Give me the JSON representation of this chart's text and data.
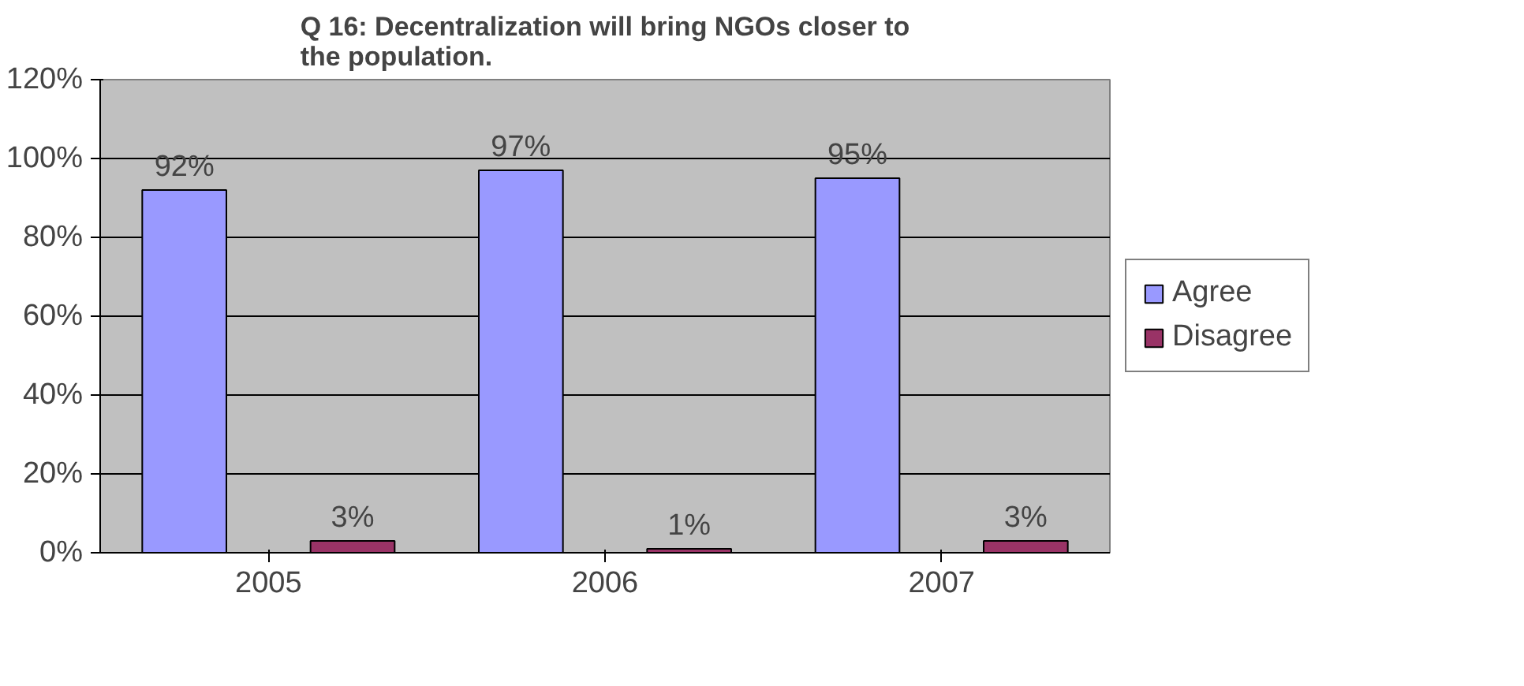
{
  "chart_data": {
    "type": "bar",
    "title": "Q 16: Decentralization will bring NGOs closer to the population.",
    "categories": [
      "2005",
      "2006",
      "2007"
    ],
    "series": [
      {
        "name": "Agree",
        "color": "#9999ff",
        "values": [
          92,
          97,
          95
        ],
        "value_labels": [
          "92%",
          "97%",
          "95%"
        ]
      },
      {
        "name": "Disagree",
        "color": "#993366",
        "values": [
          3,
          1,
          3
        ],
        "value_labels": [
          "3%",
          "1%",
          "3%"
        ]
      }
    ],
    "ylim": [
      0,
      120
    ],
    "yticks": [
      {
        "value": 0,
        "label": "0%"
      },
      {
        "value": 20,
        "label": "20%"
      },
      {
        "value": 40,
        "label": "40%"
      },
      {
        "value": 60,
        "label": "60%"
      },
      {
        "value": 80,
        "label": "80%"
      },
      {
        "value": 100,
        "label": "100%"
      },
      {
        "value": 120,
        "label": "120%"
      }
    ],
    "grid": "y",
    "legend": "right"
  }
}
